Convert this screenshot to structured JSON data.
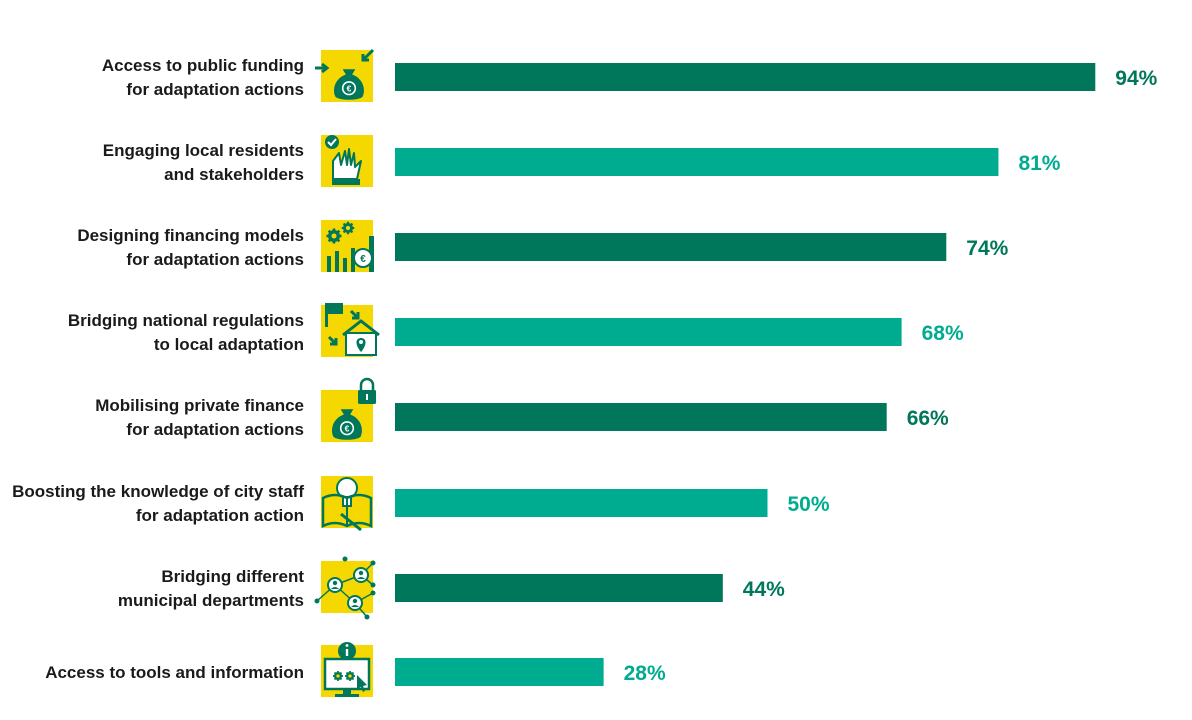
{
  "chart_data": {
    "type": "bar",
    "orientation": "horizontal",
    "title": "",
    "xlabel": "",
    "ylabel": "",
    "xlim": [
      0,
      100
    ],
    "grid": false,
    "unit": "%",
    "colors": {
      "dark": "#00775a",
      "light": "#00ac90",
      "icon_bg": "#f5d800",
      "icon_fg": "#00775a"
    },
    "categories": [
      [
        "Access to public funding",
        "for adaptation actions"
      ],
      [
        "Engaging local residents",
        "and stakeholders"
      ],
      [
        "Designing financing models",
        "for adaptation actions"
      ],
      [
        "Bridging national regulations",
        "to local adaptation"
      ],
      [
        "Mobilising private finance",
        "for adaptation actions"
      ],
      [
        "Boosting the knowledge of city staff",
        "for adaptation action"
      ],
      [
        "Bridging different",
        "municipal departments"
      ],
      [
        "Access to tools and information"
      ]
    ],
    "values": [
      94,
      81,
      74,
      68,
      66,
      50,
      44,
      28
    ],
    "value_labels": [
      "94%",
      "81%",
      "74%",
      "68%",
      "66%",
      "50%",
      "44%",
      "28%"
    ],
    "bar_shades": [
      "dark",
      "light",
      "dark",
      "light",
      "dark",
      "light",
      "dark",
      "light"
    ],
    "icons": [
      "money-bag-arrows-icon",
      "raised-hands-check-icon",
      "gears-chart-euro-icon",
      "flag-house-arrows-icon",
      "money-bag-lock-icon",
      "lightbulb-book-icon",
      "people-network-icon",
      "monitor-info-gears-icon"
    ]
  }
}
